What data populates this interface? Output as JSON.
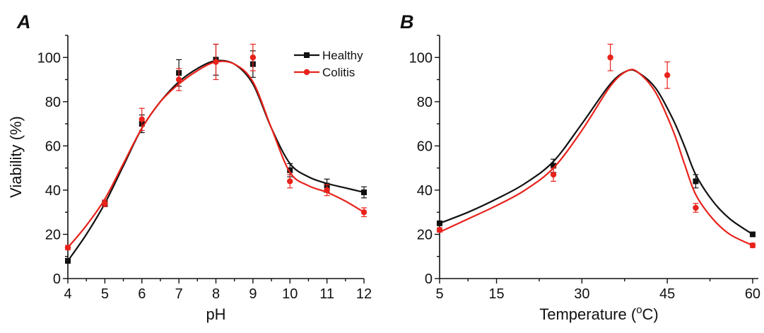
{
  "colors": {
    "healthy": "#111111",
    "colitis": "#e8221b",
    "axis": "#111111"
  },
  "chart_data": [
    {
      "panel": "A",
      "type": "line",
      "xlabel": "pH",
      "ylabel": "Viability (%)",
      "xlim": [
        4,
        12
      ],
      "ylim": [
        0,
        110
      ],
      "xticks": [
        4,
        5,
        6,
        7,
        8,
        9,
        10,
        11,
        12
      ],
      "yticks": [
        0,
        20,
        40,
        60,
        80,
        100
      ],
      "legend": {
        "position": "top-right",
        "entries": [
          "Healthy",
          "Colitis"
        ]
      },
      "series": [
        {
          "name": "Healthy",
          "marker": "square",
          "points": [
            {
              "x": 4,
              "y": 8,
              "err": 1
            },
            {
              "x": 5,
              "y": 34,
              "err": 1.5
            },
            {
              "x": 6,
              "y": 70,
              "err": 4
            },
            {
              "x": 7,
              "y": 93,
              "err": 6
            },
            {
              "x": 8,
              "y": 99,
              "err": 7
            },
            {
              "x": 9,
              "y": 97,
              "err": 6
            },
            {
              "x": 10,
              "y": 49,
              "err": 3
            },
            {
              "x": 11,
              "y": 42,
              "err": 3
            },
            {
              "x": 12,
              "y": 39,
              "err": 2.5
            }
          ],
          "fit": [
            [
              4,
              8
            ],
            [
              4.5,
              20
            ],
            [
              5,
              34
            ],
            [
              5.5,
              51
            ],
            [
              6,
              68
            ],
            [
              6.5,
              80
            ],
            [
              7,
              89
            ],
            [
              7.5,
              95
            ],
            [
              8,
              98.5
            ],
            [
              8.5,
              97
            ],
            [
              9,
              88
            ],
            [
              9.5,
              68
            ],
            [
              10,
              52
            ],
            [
              10.5,
              46
            ],
            [
              11,
              43
            ],
            [
              11.5,
              41
            ],
            [
              12,
              39
            ]
          ]
        },
        {
          "name": "Colitis",
          "marker": "circle",
          "points": [
            {
              "x": 4,
              "y": 14,
              "err": 1
            },
            {
              "x": 5,
              "y": 34,
              "err": 1.5
            },
            {
              "x": 6,
              "y": 72,
              "err": 5
            },
            {
              "x": 7,
              "y": 90,
              "err": 5
            },
            {
              "x": 8,
              "y": 98,
              "err": 8
            },
            {
              "x": 9,
              "y": 100,
              "err": 6
            },
            {
              "x": 10,
              "y": 44,
              "err": 3
            },
            {
              "x": 11,
              "y": 40,
              "err": 2.5
            },
            {
              "x": 12,
              "y": 30,
              "err": 2
            }
          ],
          "fit": [
            [
              4,
              14
            ],
            [
              4.5,
              24
            ],
            [
              5,
              36
            ],
            [
              5.5,
              52
            ],
            [
              6,
              68
            ],
            [
              6.5,
              80
            ],
            [
              7,
              88
            ],
            [
              7.5,
              94
            ],
            [
              8,
              98
            ],
            [
              8.5,
              97
            ],
            [
              9,
              89
            ],
            [
              9.5,
              68
            ],
            [
              10,
              48
            ],
            [
              10.5,
              42
            ],
            [
              11,
              39
            ],
            [
              11.5,
              35
            ],
            [
              12,
              30
            ]
          ]
        }
      ]
    },
    {
      "panel": "B",
      "type": "line",
      "xlabel": "Temperature (°C)",
      "xlabel_parts": {
        "pre": "Temperature (",
        "sup": "o",
        "post": "C)"
      },
      "ylabel": "",
      "xlim": [
        5,
        61
      ],
      "ylim": [
        0,
        110
      ],
      "xticks": [
        5,
        15,
        30,
        45,
        60
      ],
      "yticks": [
        0,
        20,
        40,
        60,
        80,
        100
      ],
      "series": [
        {
          "name": "Healthy",
          "marker": "square",
          "points": [
            {
              "x": 5,
              "y": 25,
              "err": 1
            },
            {
              "x": 25,
              "y": 51,
              "err": 3
            },
            {
              "x": 50,
              "y": 44,
              "err": 3
            },
            {
              "x": 60,
              "y": 20,
              "err": 1
            }
          ],
          "fit": [
            [
              5,
              25
            ],
            [
              10,
              30
            ],
            [
              15,
              36
            ],
            [
              20,
              43
            ],
            [
              25,
              53
            ],
            [
              30,
              70
            ],
            [
              35,
              88
            ],
            [
              38,
              94
            ],
            [
              40,
              93
            ],
            [
              43,
              86
            ],
            [
              46,
              72
            ],
            [
              48,
              60
            ],
            [
              50,
              47
            ],
            [
              53,
              35
            ],
            [
              56,
              27
            ],
            [
              60,
              20
            ]
          ]
        },
        {
          "name": "Colitis",
          "marker": "circle",
          "points": [
            {
              "x": 5,
              "y": 22,
              "err": 1
            },
            {
              "x": 25,
              "y": 47,
              "err": 3
            },
            {
              "x": 35,
              "y": 100,
              "err": 6
            },
            {
              "x": 45,
              "y": 92,
              "err": 6
            },
            {
              "x": 50,
              "y": 32,
              "err": 2
            },
            {
              "x": 60,
              "y": 15,
              "err": 1
            }
          ],
          "fit": [
            [
              5,
              21
            ],
            [
              10,
              27
            ],
            [
              15,
              33
            ],
            [
              20,
              40
            ],
            [
              25,
              50
            ],
            [
              30,
              67
            ],
            [
              35,
              87
            ],
            [
              38,
              94
            ],
            [
              40,
              93
            ],
            [
              43,
              84
            ],
            [
              46,
              67
            ],
            [
              48,
              52
            ],
            [
              50,
              38
            ],
            [
              53,
              27
            ],
            [
              56,
              20
            ],
            [
              60,
              15
            ]
          ]
        }
      ]
    }
  ]
}
